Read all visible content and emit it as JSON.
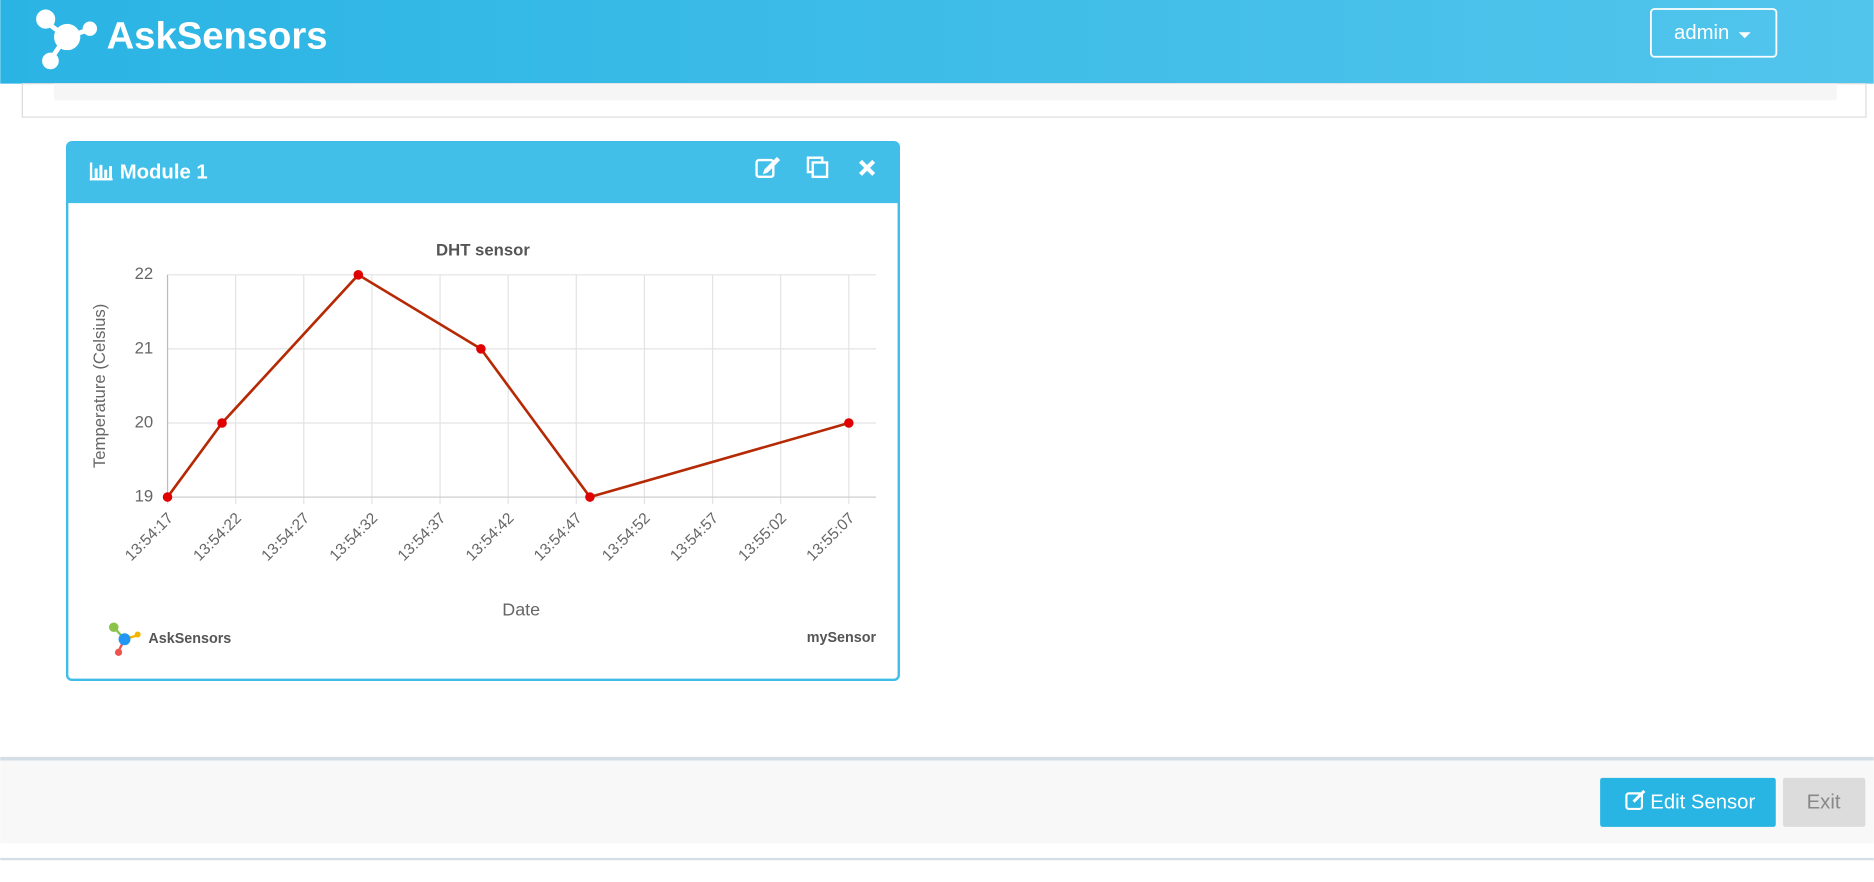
{
  "header": {
    "brand": "AskSensors",
    "user": "admin"
  },
  "module": {
    "title": "Module 1"
  },
  "chart_data": {
    "type": "line",
    "title": "DHT sensor",
    "x_label": "Date",
    "y_label": "Temperature (Celsius)",
    "x": [
      "13:54:17",
      "13:54:21",
      "13:54:31",
      "13:54:40",
      "13:54:48",
      "13:55:07"
    ],
    "series": [
      {
        "name": "mySensor",
        "color": "#b52a05",
        "values": [
          19,
          20,
          22,
          21,
          19,
          20
        ]
      }
    ],
    "xlim": [
      "13:54:17",
      "13:55:09"
    ],
    "xticks": [
      "13:54:17",
      "13:54:22",
      "13:54:27",
      "13:54:32",
      "13:54:37",
      "13:54:42",
      "13:54:47",
      "13:54:52",
      "13:54:57",
      "13:55:02",
      "13:55:07"
    ],
    "ylim": [
      19,
      22
    ],
    "yticks": [
      19,
      20,
      21,
      22
    ],
    "grid": true,
    "credit": "AskSensors"
  },
  "footer": {
    "edit": "Edit Sensor",
    "exit": "Exit"
  }
}
